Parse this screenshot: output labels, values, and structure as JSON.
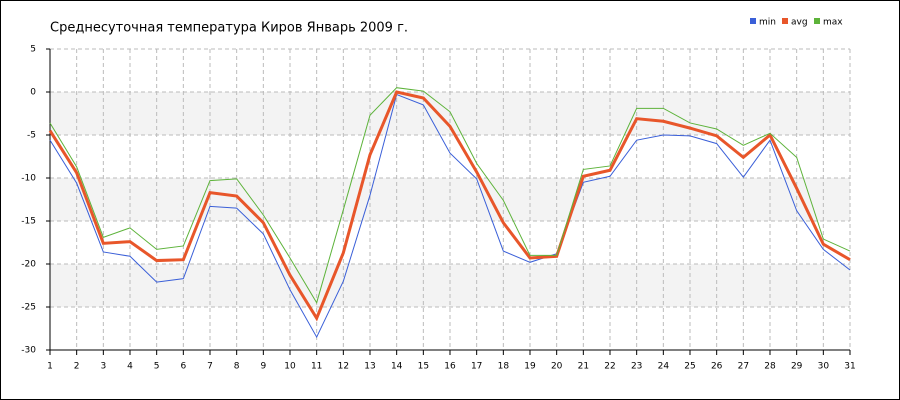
{
  "chart_data": {
    "type": "line",
    "title": "Среднесуточная температура Киров  Январь 2009 г.",
    "x": [
      1,
      2,
      3,
      4,
      5,
      6,
      7,
      8,
      9,
      10,
      11,
      12,
      13,
      14,
      15,
      16,
      17,
      18,
      19,
      20,
      21,
      22,
      23,
      24,
      25,
      26,
      27,
      28,
      29,
      30,
      31
    ],
    "xlim": [
      1,
      31
    ],
    "xticks": [
      1,
      2,
      3,
      4,
      5,
      6,
      7,
      8,
      9,
      10,
      11,
      12,
      13,
      14,
      15,
      16,
      17,
      18,
      19,
      20,
      21,
      22,
      23,
      24,
      25,
      26,
      27,
      28,
      29,
      30,
      31
    ],
    "ylim": [
      -30,
      5
    ],
    "yticks": [
      -30,
      -25,
      -20,
      -15,
      -10,
      -5,
      0,
      5
    ],
    "grid": true,
    "legend": "top-right",
    "series": [
      {
        "name": "min",
        "color": "#3a5fd8",
        "values": [
          -5.6,
          -10.6,
          -18.6,
          -19.1,
          -22.1,
          -21.7,
          -13.3,
          -13.5,
          -16.5,
          -23,
          -28.5,
          -22,
          -12,
          -0.3,
          -1.5,
          -7.1,
          -10.1,
          -18.5,
          -19.8,
          -18.8,
          -10.5,
          -9.8,
          -5.6,
          -5,
          -5.1,
          -6,
          -9.9,
          -5.6,
          -13.8,
          -18.3,
          -20.7
        ]
      },
      {
        "name": "avg",
        "color": "#e8562a",
        "values": [
          -4.5,
          -9.4,
          -17.6,
          -17.4,
          -19.6,
          -19.5,
          -11.7,
          -12.1,
          -15.2,
          -21.3,
          -26.3,
          -18.7,
          -7.3,
          0,
          -0.7,
          -4,
          -9.3,
          -15.2,
          -19.3,
          -19.1,
          -9.8,
          -9.1,
          -3.1,
          -3.4,
          -4.2,
          -5.1,
          -7.6,
          -5,
          -11.2,
          -17.7,
          -19.5
        ]
      },
      {
        "name": "max",
        "color": "#5db33a",
        "values": [
          -3.6,
          -8.7,
          -16.9,
          -15.8,
          -18.3,
          -17.9,
          -10.3,
          -10.1,
          -14.3,
          -19.3,
          -24.5,
          -13.7,
          -2.7,
          0.5,
          0.1,
          -2.3,
          -8.3,
          -12.6,
          -19,
          -19,
          -9,
          -8.6,
          -1.9,
          -1.9,
          -3.6,
          -4.3,
          -6.2,
          -4.8,
          -7.6,
          -17.1,
          -18.5
        ]
      }
    ]
  }
}
